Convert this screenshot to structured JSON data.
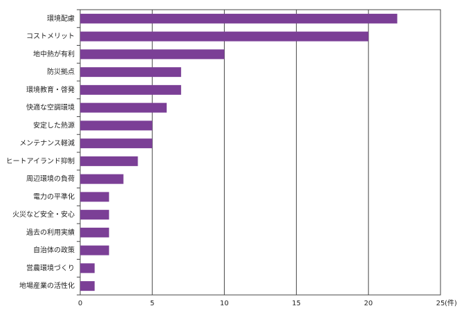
{
  "chart_data": {
    "type": "barh",
    "categories": [
      "環境配慮",
      "コストメリット",
      "地中熱が有利",
      "防災拠点",
      "環境教育・啓発",
      "快適な空調環境",
      "安定した熱源",
      "メンテナンス軽減",
      "ヒートアイランド抑制",
      "周辺環境の負荷",
      "電力の平準化",
      "火災など安全・安心",
      "過去の利用実績",
      "自治体の政策",
      "営農環境づくり",
      "地場産業の活性化"
    ],
    "values": [
      22,
      20,
      10,
      7,
      7,
      6,
      5,
      5,
      4,
      3,
      2,
      2,
      2,
      2,
      1,
      1
    ],
    "color": "#7b3f96",
    "xlim": [
      0,
      25
    ],
    "xticks": [
      0,
      5,
      10,
      15,
      20,
      25
    ],
    "x_label": "(件)",
    "grid": true
  }
}
